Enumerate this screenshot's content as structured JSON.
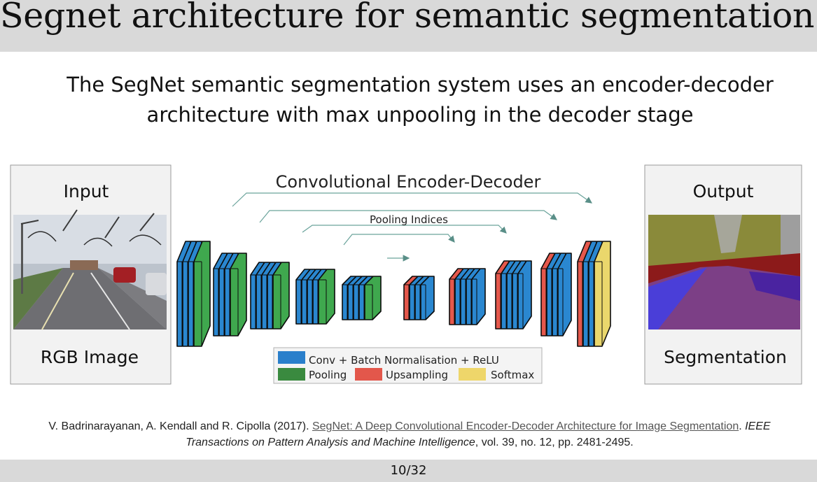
{
  "slide": {
    "title": "Segnet architecture for semantic segmentation",
    "subtitle": "The SegNet semantic segmentation system uses an encoder-decoder architecture with max unpooling in the decoder stage",
    "page": "10/32"
  },
  "diagram": {
    "header": "Convolutional Encoder-Decoder",
    "pooling_indices_label": "Pooling Indices",
    "input_panel": {
      "top_label": "Input",
      "bottom_label": "RGB Image"
    },
    "output_panel": {
      "top_label": "Output",
      "bottom_label": "Segmentation"
    },
    "legend": [
      {
        "label": "Conv + Batch Normalisation + ReLU",
        "color": "#2a7fcb"
      },
      {
        "label": "Pooling",
        "color": "#3a8a3f"
      },
      {
        "label": "Upsampling",
        "color": "#e3574b"
      },
      {
        "label": "Softmax",
        "color": "#eed66a"
      }
    ],
    "colors": {
      "conv": "#2a87d0",
      "pool": "#3fa84e",
      "upsample": "#e5584c",
      "softmax": "#ead76c",
      "arrow": "#6aa39b",
      "panel_bg": "#f2f2f2"
    }
  },
  "citation": {
    "authors": "V. Badrinarayanan, A. Kendall and R. Cipolla (2017). ",
    "link_text": "SegNet: A Deep Convolutional Encoder-Decoder Architecture for Image Segmentation",
    "sep": ". ",
    "journal": "IEEE Transactions on Pattern Analysis and Machine Intelligence",
    "details": ", vol. 39, no. 12, pp. 2481-2495."
  }
}
